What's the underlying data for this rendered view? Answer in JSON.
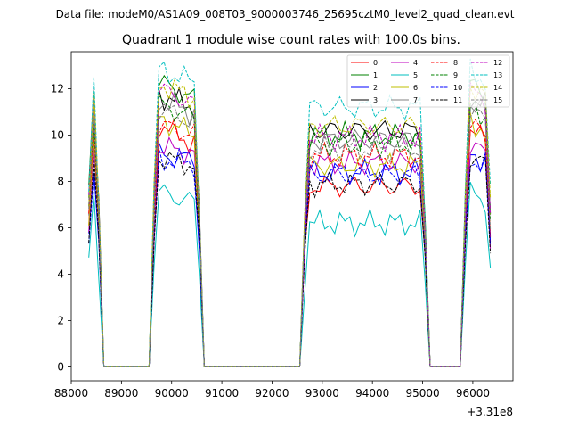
{
  "chart_data": {
    "type": "line",
    "suptitle": "Data file: modeM0/AS1A09_008T03_9000003746_25695cztM0_level2_quad_clean.evt",
    "title": "Quadrant 1 module wise count rates with 100.0s bins.",
    "xlabel": "",
    "ylabel": "",
    "x_offset_label": "+3.31e8",
    "xlim": [
      88000,
      96800
    ],
    "ylim": [
      -0.6,
      13.6
    ],
    "x_ticks": [
      88000,
      89000,
      90000,
      91000,
      92000,
      93000,
      94000,
      95000,
      96000
    ],
    "y_ticks": [
      0,
      2,
      4,
      6,
      8,
      10,
      12
    ],
    "grid": false,
    "legend_position": "top-right",
    "segments": [
      {
        "start": 88350,
        "end": 88550
      },
      {
        "start": 89650,
        "end": 90550
      },
      {
        "start": 92650,
        "end": 95050
      },
      {
        "start": 95850,
        "end": 96350
      }
    ],
    "series": [
      {
        "name": "0",
        "color": "#ff0000",
        "dash": "solid",
        "level": 7.8,
        "peak": 10.6
      },
      {
        "name": "1",
        "color": "#008000",
        "dash": "solid",
        "level": 10.0,
        "peak": 12.4
      },
      {
        "name": "2",
        "color": "#0000ff",
        "dash": "solid",
        "level": 8.4,
        "peak": 9.2
      },
      {
        "name": "3",
        "color": "#000000",
        "dash": "solid",
        "level": 10.2,
        "peak": 11.8
      },
      {
        "name": "4",
        "color": "#bf00bf",
        "dash": "solid",
        "level": 8.8,
        "peak": 9.5
      },
      {
        "name": "5",
        "color": "#00bfbf",
        "dash": "solid",
        "level": 6.2,
        "peak": 7.6
      },
      {
        "name": "6",
        "color": "#bfbf00",
        "dash": "solid",
        "level": 8.7,
        "peak": 10.8
      },
      {
        "name": "7",
        "color": "#808080",
        "dash": "solid",
        "level": 9.8,
        "peak": 11.6
      },
      {
        "name": "8",
        "color": "#ff0000",
        "dash": "dashed",
        "level": 9.1,
        "peak": 10.5
      },
      {
        "name": "9",
        "color": "#008000",
        "dash": "dashed",
        "level": 9.6,
        "peak": 11.4
      },
      {
        "name": "10",
        "color": "#0000ff",
        "dash": "dashed",
        "level": 8.3,
        "peak": 9.0
      },
      {
        "name": "11",
        "color": "#000000",
        "dash": "dashed",
        "level": 7.9,
        "peak": 9.1
      },
      {
        "name": "12",
        "color": "#bf00bf",
        "dash": "dashed",
        "level": 9.9,
        "peak": 12.1
      },
      {
        "name": "13",
        "color": "#00bfbf",
        "dash": "dashed",
        "level": 11.2,
        "peak": 12.9
      },
      {
        "name": "14",
        "color": "#bfbf00",
        "dash": "dashed",
        "level": 10.4,
        "peak": 12.3
      },
      {
        "name": "15",
        "color": "#808080",
        "dash": "dashed",
        "level": 9.4,
        "peak": 11.2
      }
    ]
  }
}
